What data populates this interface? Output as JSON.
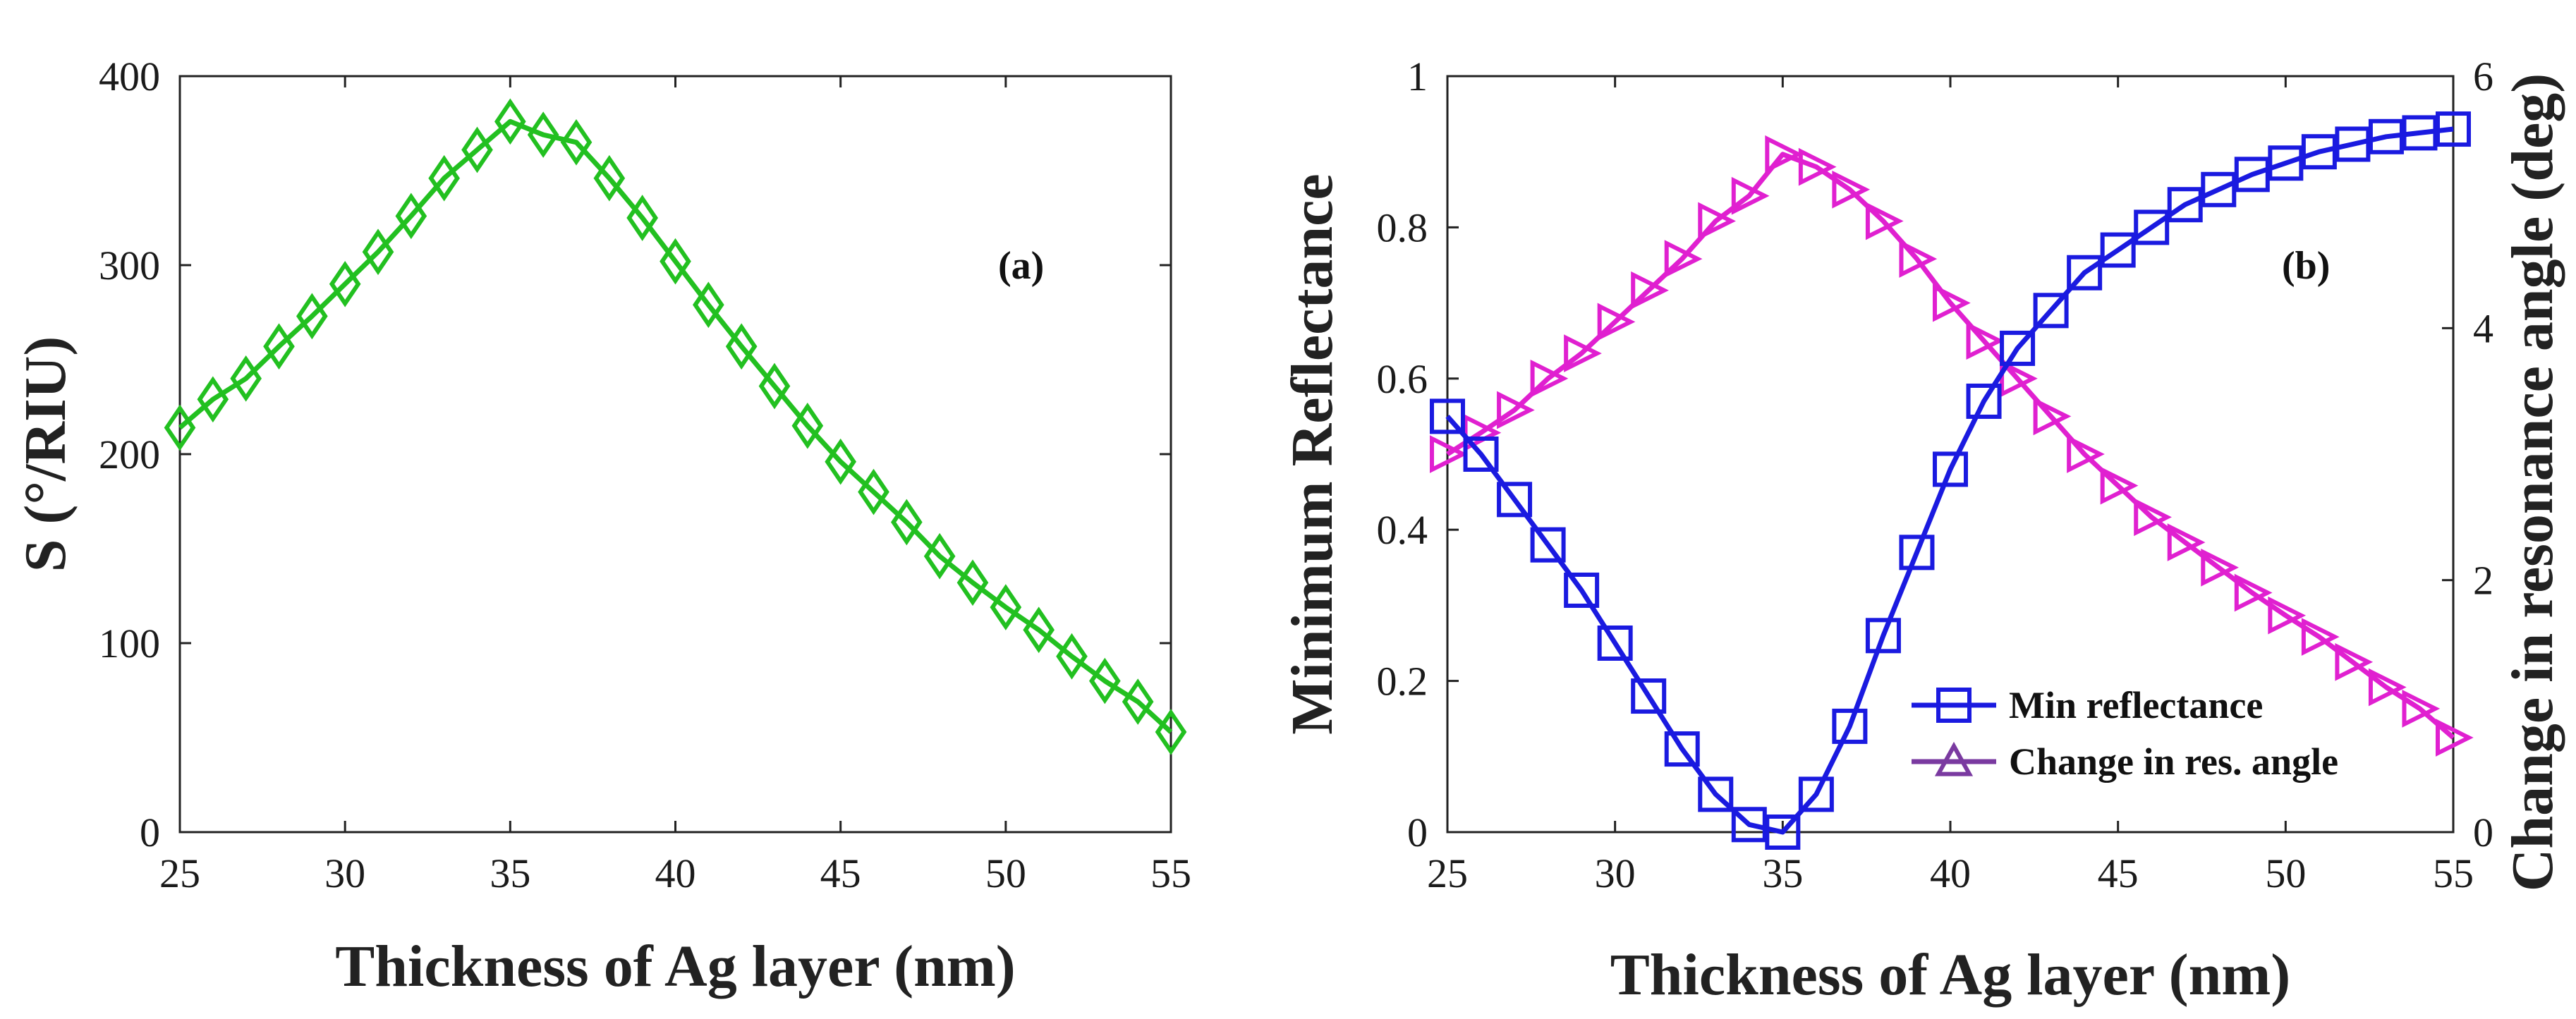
{
  "chart_data": [
    {
      "type": "line",
      "panel_label": "(a)",
      "xlabel": "Thickness of Ag layer (nm)",
      "ylabel": "S (°/RIU)",
      "xlim": [
        25,
        55
      ],
      "ylim": [
        0,
        400
      ],
      "xticks": [
        25,
        30,
        35,
        40,
        45,
        50,
        55
      ],
      "yticks": [
        0,
        100,
        200,
        300,
        400
      ],
      "marker": "diamond",
      "color": "#22c020",
      "series": [
        {
          "name": "S",
          "x": [
            25,
            26,
            27,
            28,
            29,
            30,
            31,
            32,
            33,
            34,
            35,
            36,
            37,
            38,
            39,
            40,
            41,
            42,
            43,
            44,
            45,
            46,
            47,
            48,
            49,
            50,
            51,
            52,
            53,
            54,
            55
          ],
          "values": [
            214,
            229,
            240,
            257,
            273,
            290,
            307,
            326,
            346,
            361,
            376,
            369,
            365,
            346,
            325,
            302,
            279,
            257,
            236,
            215,
            196,
            180,
            164,
            146,
            132,
            119,
            107,
            93,
            80,
            69,
            53
          ]
        }
      ]
    },
    {
      "type": "line",
      "panel_label": "(b)",
      "xlabel": "Thickness of Ag layer (nm)",
      "ylabel_left": "Minimum Reflectance",
      "ylabel_right": "Change in resonance angle (deg)",
      "xlim": [
        25,
        55
      ],
      "ylim_left": [
        0,
        1
      ],
      "ylim_right": [
        0,
        6
      ],
      "xticks": [
        25,
        30,
        35,
        40,
        45,
        50,
        55
      ],
      "yticks_left": [
        0,
        0.2,
        0.4,
        0.6,
        0.8,
        1
      ],
      "yticks_right": [
        0,
        2,
        4,
        6
      ],
      "legend_position": "center-right",
      "colors": {
        "reflectance": "#1a1ae0",
        "angle": "#e020d0",
        "legend_angle": "#7a3aa0"
      },
      "series": [
        {
          "name": "Min  reflectance",
          "axis": "left",
          "marker": "square",
          "x": [
            25,
            26,
            27,
            28,
            29,
            30,
            31,
            32,
            33,
            34,
            35,
            36,
            37,
            38,
            39,
            40,
            41,
            42,
            43,
            44,
            45,
            46,
            47,
            48,
            49,
            50,
            51,
            52,
            53,
            54,
            55
          ],
          "values": [
            0.55,
            0.5,
            0.44,
            0.38,
            0.32,
            0.25,
            0.18,
            0.11,
            0.05,
            0.01,
            0.0,
            0.05,
            0.14,
            0.26,
            0.37,
            0.48,
            0.57,
            0.64,
            0.69,
            0.74,
            0.77,
            0.8,
            0.83,
            0.85,
            0.87,
            0.885,
            0.9,
            0.91,
            0.92,
            0.925,
            0.93
          ]
        },
        {
          "name": "Change  in res. angle",
          "axis": "right",
          "marker": "triangle",
          "x": [
            25,
            26,
            27,
            28,
            29,
            30,
            31,
            32,
            33,
            34,
            35,
            36,
            37,
            38,
            39,
            40,
            41,
            42,
            43,
            44,
            45,
            46,
            47,
            48,
            49,
            50,
            51,
            52,
            53,
            54,
            55
          ],
          "values": [
            3.0,
            3.17,
            3.35,
            3.6,
            3.8,
            4.05,
            4.3,
            4.55,
            4.85,
            5.05,
            5.38,
            5.28,
            5.1,
            4.85,
            4.55,
            4.2,
            3.9,
            3.6,
            3.3,
            3.0,
            2.75,
            2.5,
            2.3,
            2.1,
            1.9,
            1.72,
            1.55,
            1.35,
            1.15,
            0.98,
            0.75
          ]
        }
      ]
    }
  ]
}
